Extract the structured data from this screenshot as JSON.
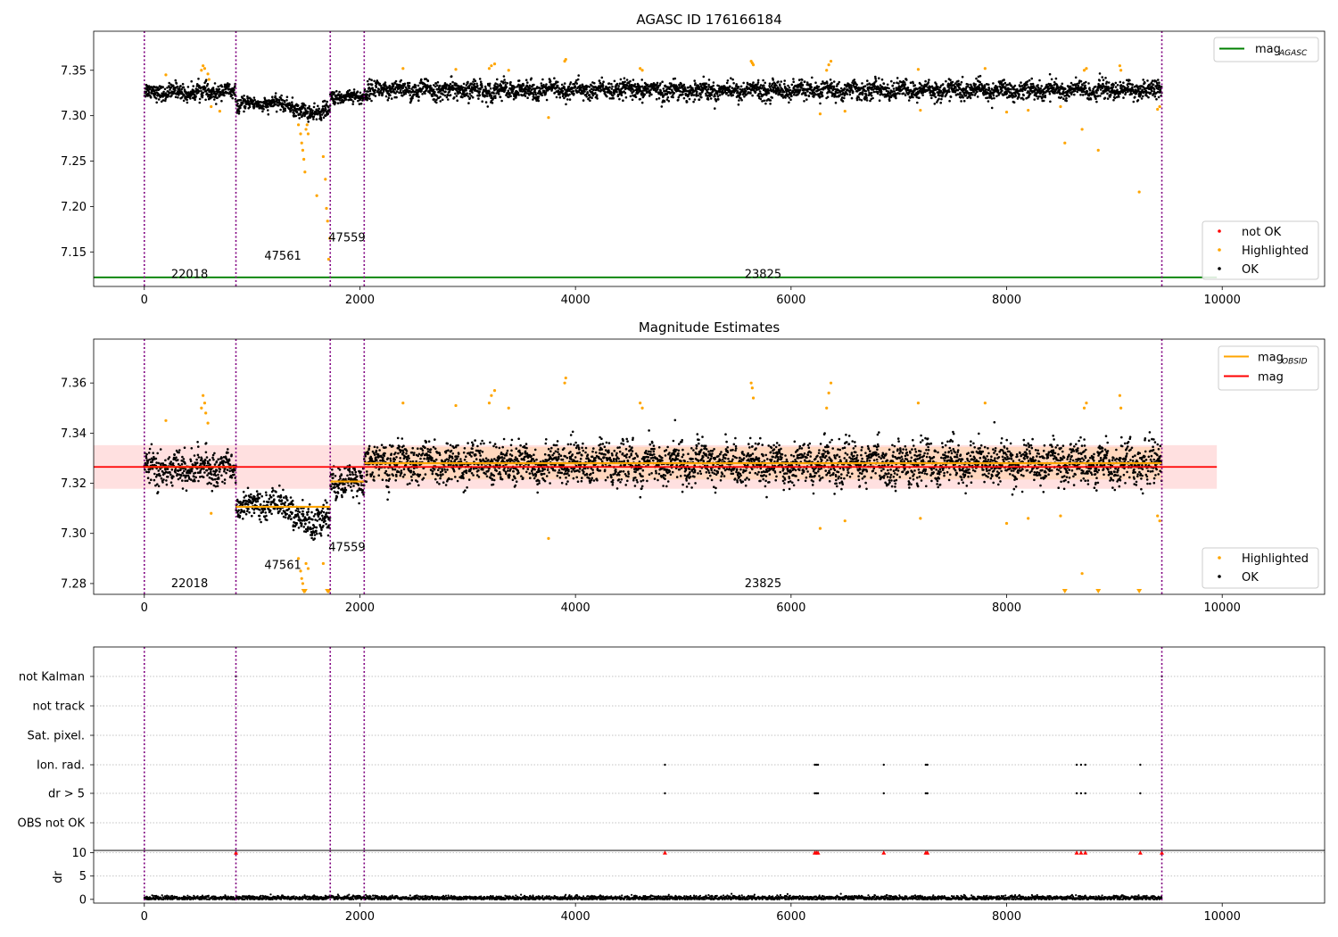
{
  "chart_data": [
    {
      "type": "scatter",
      "title": "AGASC ID 176166184",
      "xlabel": "",
      "ylabel": "",
      "xlim": [
        -470,
        10950
      ],
      "ylim": [
        7.112,
        7.393
      ],
      "x_ticks": [
        0,
        2000,
        4000,
        6000,
        8000,
        10000
      ],
      "y_ticks": [
        7.15,
        7.2,
        7.25,
        7.3,
        7.35
      ],
      "y_tick_labels": [
        "7.15",
        "7.20",
        "7.25",
        "7.30",
        "7.35"
      ],
      "obsid_boundaries": [
        0,
        850,
        1725,
        2040,
        9440
      ],
      "obsid_labels": [
        {
          "text": "22018",
          "x": 420,
          "y": 7.1215
        },
        {
          "text": "47561",
          "x": 1285,
          "y": 7.1415
        },
        {
          "text": "47559",
          "x": 1880,
          "y": 7.1615
        },
        {
          "text": "23825",
          "x": 5740,
          "y": 7.1215
        }
      ],
      "mag_agasc": 7.122,
      "mag_agasc_range": [
        -470,
        9950
      ],
      "legend_top": {
        "placement": "top-right",
        "entries": [
          {
            "label": "mag",
            "sub": "AGASC",
            "color": "#008000"
          }
        ]
      },
      "legend_bottom": {
        "placement": "bottom-right",
        "entries": [
          {
            "label": "not OK",
            "color": "#ff0000"
          },
          {
            "label": "Highlighted",
            "color": "#ffa500"
          },
          {
            "label": "OK",
            "color": "#000000"
          }
        ]
      },
      "ok_segments": [
        {
          "x0": 0,
          "x1": 850,
          "mean": 7.326,
          "spread": 0.006
        },
        {
          "x0": 850,
          "x1": 1380,
          "mean": 7.313,
          "spread": 0.005
        },
        {
          "x0": 1380,
          "x1": 1725,
          "mean": 7.304,
          "spread": 0.006
        },
        {
          "x0": 1725,
          "x1": 2040,
          "mean": 7.321,
          "spread": 0.005
        },
        {
          "x0": 2040,
          "x1": 9440,
          "mean": 7.328,
          "spread": 0.007
        }
      ],
      "highlighted_points": [
        [
          200,
          7.345
        ],
        [
          530,
          7.35
        ],
        [
          545,
          7.355
        ],
        [
          560,
          7.352
        ],
        [
          590,
          7.346
        ],
        [
          600,
          7.34
        ],
        [
          620,
          7.31
        ],
        [
          700,
          7.305
        ],
        [
          1430,
          7.29
        ],
        [
          1450,
          7.28
        ],
        [
          1460,
          7.27
        ],
        [
          1470,
          7.262
        ],
        [
          1480,
          7.252
        ],
        [
          1490,
          7.238
        ],
        [
          1500,
          7.285
        ],
        [
          1510,
          7.29
        ],
        [
          1520,
          7.28
        ],
        [
          1600,
          7.212
        ],
        [
          1660,
          7.255
        ],
        [
          1680,
          7.23
        ],
        [
          1690,
          7.198
        ],
        [
          1700,
          7.184
        ],
        [
          1710,
          7.142
        ],
        [
          1720,
          7.165
        ],
        [
          2400,
          7.352
        ],
        [
          2890,
          7.351
        ],
        [
          3200,
          7.352
        ],
        [
          3220,
          7.355
        ],
        [
          3250,
          7.357
        ],
        [
          3380,
          7.35
        ],
        [
          3750,
          7.298
        ],
        [
          3900,
          7.36
        ],
        [
          3910,
          7.362
        ],
        [
          4600,
          7.352
        ],
        [
          4620,
          7.35
        ],
        [
          5630,
          7.36
        ],
        [
          5640,
          7.358
        ],
        [
          5650,
          7.356
        ],
        [
          6270,
          7.302
        ],
        [
          6330,
          7.35
        ],
        [
          6350,
          7.356
        ],
        [
          6370,
          7.36
        ],
        [
          6500,
          7.305
        ],
        [
          7180,
          7.351
        ],
        [
          7200,
          7.306
        ],
        [
          7800,
          7.352
        ],
        [
          8000,
          7.304
        ],
        [
          8200,
          7.306
        ],
        [
          8500,
          7.31
        ],
        [
          8540,
          7.27
        ],
        [
          8700,
          7.285
        ],
        [
          8720,
          7.35
        ],
        [
          8740,
          7.352
        ],
        [
          8850,
          7.262
        ],
        [
          9050,
          7.355
        ],
        [
          9060,
          7.35
        ],
        [
          9230,
          7.216
        ],
        [
          9400,
          7.307
        ],
        [
          9420,
          7.31
        ]
      ],
      "red_points": []
    },
    {
      "type": "scatter",
      "title": "Magnitude Estimates",
      "xlabel": "",
      "ylabel": "",
      "xlim": [
        -470,
        10950
      ],
      "ylim": [
        7.2757,
        7.3775
      ],
      "x_ticks": [
        0,
        2000,
        4000,
        6000,
        8000,
        10000
      ],
      "y_ticks": [
        7.28,
        7.3,
        7.32,
        7.34,
        7.36
      ],
      "y_tick_labels": [
        "7.28",
        "7.30",
        "7.32",
        "7.34",
        "7.36"
      ],
      "obsid_boundaries": [
        0,
        850,
        1725,
        2040,
        9440
      ],
      "obsid_labels": [
        {
          "text": "22018",
          "x": 420,
          "y": 7.2786
        },
        {
          "text": "47561",
          "x": 1285,
          "y": 7.2858
        },
        {
          "text": "47559",
          "x": 1880,
          "y": 7.293
        },
        {
          "text": "23825",
          "x": 5740,
          "y": 7.2786
        }
      ],
      "mag": 7.3265,
      "mag_band": [
        7.3178,
        7.3352
      ],
      "mag_range": [
        -470,
        9950
      ],
      "mag_obsid": [
        {
          "x0": 0,
          "x1": 850,
          "y": 7.3265
        },
        {
          "x0": 850,
          "x1": 1725,
          "y": 7.3106
        },
        {
          "x0": 1725,
          "x1": 2040,
          "y": 7.3207
        },
        {
          "x0": 2040,
          "x1": 9440,
          "y": 7.328
        }
      ],
      "legend_top": {
        "placement": "top-right",
        "entries": [
          {
            "label": "mag",
            "sub": "OBSID",
            "color": "#ffa500"
          },
          {
            "label": "mag",
            "sub": "",
            "color": "#ff0000"
          }
        ]
      },
      "legend_bottom": {
        "placement": "bottom-right",
        "entries": [
          {
            "label": "Highlighted",
            "color": "#ffa500"
          },
          {
            "label": "OK",
            "color": "#000000"
          }
        ]
      },
      "ok_segments": [
        {
          "x0": 0,
          "x1": 850,
          "mean": 7.326,
          "spread": 0.0045
        },
        {
          "x0": 850,
          "x1": 1380,
          "mean": 7.3115,
          "spread": 0.0035
        },
        {
          "x0": 1380,
          "x1": 1725,
          "mean": 7.3045,
          "spread": 0.0045
        },
        {
          "x0": 1725,
          "x1": 2040,
          "mean": 7.321,
          "spread": 0.004
        },
        {
          "x0": 2040,
          "x1": 9440,
          "mean": 7.328,
          "spread": 0.0055
        }
      ],
      "highlighted_points": [
        [
          200,
          7.345
        ],
        [
          530,
          7.35
        ],
        [
          545,
          7.355
        ],
        [
          560,
          7.352
        ],
        [
          570,
          7.348
        ],
        [
          590,
          7.344
        ],
        [
          620,
          7.308
        ],
        [
          1430,
          7.29
        ],
        [
          1450,
          7.285
        ],
        [
          1460,
          7.282
        ],
        [
          1470,
          7.28
        ],
        [
          1480,
          7.277
        ],
        [
          1490,
          7.277
        ],
        [
          1500,
          7.288
        ],
        [
          1520,
          7.286
        ],
        [
          1660,
          7.288
        ],
        [
          1700,
          7.277
        ],
        [
          1710,
          7.277
        ],
        [
          2400,
          7.352
        ],
        [
          2890,
          7.351
        ],
        [
          3200,
          7.352
        ],
        [
          3220,
          7.355
        ],
        [
          3250,
          7.357
        ],
        [
          3380,
          7.35
        ],
        [
          3750,
          7.298
        ],
        [
          3900,
          7.36
        ],
        [
          3910,
          7.362
        ],
        [
          4600,
          7.352
        ],
        [
          4620,
          7.35
        ],
        [
          5630,
          7.36
        ],
        [
          5640,
          7.358
        ],
        [
          5650,
          7.354
        ],
        [
          6270,
          7.302
        ],
        [
          6330,
          7.35
        ],
        [
          6350,
          7.356
        ],
        [
          6370,
          7.36
        ],
        [
          6500,
          7.305
        ],
        [
          7180,
          7.352
        ],
        [
          7200,
          7.306
        ],
        [
          7800,
          7.352
        ],
        [
          8000,
          7.304
        ],
        [
          8200,
          7.306
        ],
        [
          8500,
          7.307
        ],
        [
          8540,
          7.277
        ],
        [
          8700,
          7.284
        ],
        [
          8720,
          7.35
        ],
        [
          8740,
          7.352
        ],
        [
          8850,
          7.277
        ],
        [
          9050,
          7.355
        ],
        [
          9060,
          7.35
        ],
        [
          9230,
          7.277
        ],
        [
          9400,
          7.307
        ],
        [
          9420,
          7.305
        ]
      ]
    },
    {
      "type": "scatter",
      "title": "",
      "xlabel": "",
      "ylabel": "",
      "xlim": [
        -470,
        10950
      ],
      "flag_categories": [
        "not Kalman",
        "not track",
        "Sat. pixel.",
        "Ion. rad.",
        "dr > 5",
        "OBS not OK"
      ],
      "flag_points": {
        "not Kalman": [
          850,
          9440
        ],
        "not track": [],
        "Sat. pixel.": [],
        "Ion. rad.": [
          4830,
          6220,
          6235,
          6250,
          6860,
          7250,
          7265,
          8650,
          8690,
          8730,
          9240
        ],
        "dr > 5": [
          4830,
          6220,
          6235,
          6250,
          6860,
          7250,
          7265,
          8650,
          8690,
          8730,
          9240
        ],
        "OBS not OK": []
      },
      "obsid_boundaries": [
        0,
        850,
        1725,
        2040,
        9440
      ]
    },
    {
      "type": "scatter",
      "title": "",
      "xlabel": "",
      "ylabel": "dr",
      "xlim": [
        -470,
        10950
      ],
      "ylim": [
        -0.8,
        10.5
      ],
      "x_ticks": [
        0,
        2000,
        4000,
        6000,
        8000,
        10000
      ],
      "y_ticks": [
        0,
        5,
        10
      ],
      "y_tick_labels": [
        "0",
        "5",
        "10"
      ],
      "dr_level": 0.3,
      "dr_spread": 0.25,
      "clipped_points": [
        850,
        4830,
        6220,
        6235,
        6250,
        6860,
        7250,
        7265,
        8650,
        8690,
        8730,
        9240,
        9440
      ],
      "obsid_boundaries": [
        0,
        850,
        1725,
        2040,
        9440
      ]
    }
  ]
}
